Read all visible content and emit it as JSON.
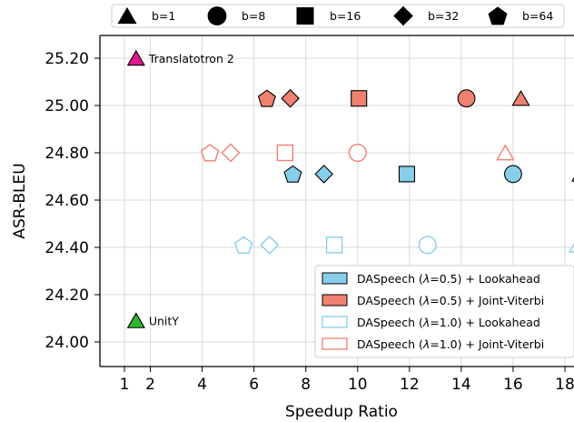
{
  "chart_data": {
    "type": "scatter",
    "xlabel": "Speedup Ratio",
    "ylabel": "ASR-BLEU",
    "xlim": [
      -0.3,
      18.7
    ],
    "ylim": [
      23.9,
      25.3
    ],
    "x_ticks": [
      1,
      2,
      4,
      6,
      8,
      10,
      12,
      14,
      16,
      18
    ],
    "x_tick_labels": [
      "1",
      "2",
      "4",
      "6",
      "8",
      "10",
      "12",
      "14",
      "16",
      "18"
    ],
    "y_ticks": [
      24.0,
      24.2,
      24.4,
      24.6,
      24.8,
      25.0,
      25.2
    ],
    "y_tick_labels": [
      "24.00",
      "24.20",
      "24.40",
      "24.60",
      "24.80",
      "25.00",
      "25.20"
    ],
    "grid": true,
    "marker_legend": {
      "placement": "top",
      "entries": [
        {
          "label": "b=1",
          "marker": "triangle"
        },
        {
          "label": "b=8",
          "marker": "circle"
        },
        {
          "label": "b=16",
          "marker": "square"
        },
        {
          "label": "b=32",
          "marker": "diamond"
        },
        {
          "label": "b=64",
          "marker": "pentagon"
        }
      ]
    },
    "series_legend": {
      "placement": "lower-right",
      "entries": [
        {
          "series": 0,
          "pre": "DASpeech (",
          "greek": "λ",
          "post": "=0.5) + Lookahead"
        },
        {
          "series": 1,
          "pre": "DASpeech (",
          "greek": "λ",
          "post": "=0.5) + Joint-Viterbi"
        },
        {
          "series": 2,
          "pre": "DASpeech (",
          "greek": "λ",
          "post": "=1.0) + Lookahead"
        },
        {
          "series": 3,
          "pre": "DASpeech (",
          "greek": "λ",
          "post": "=1.0) + Joint-Viterbi"
        }
      ]
    },
    "series": [
      {
        "fill": "#87ceeb",
        "stroke": "#000000",
        "filled": true,
        "points": [
          {
            "x": 18.6,
            "y": 24.71,
            "marker": "triangle"
          },
          {
            "x": 16.0,
            "y": 24.71,
            "marker": "circle"
          },
          {
            "x": 11.9,
            "y": 24.71,
            "marker": "square"
          },
          {
            "x": 8.7,
            "y": 24.71,
            "marker": "diamond"
          },
          {
            "x": 7.5,
            "y": 24.71,
            "marker": "pentagon"
          }
        ]
      },
      {
        "fill": "#f08070",
        "stroke": "#000000",
        "filled": true,
        "points": [
          {
            "x": 16.3,
            "y": 25.03,
            "marker": "triangle"
          },
          {
            "x": 14.2,
            "y": 25.03,
            "marker": "circle"
          },
          {
            "x": 10.05,
            "y": 25.03,
            "marker": "square"
          },
          {
            "x": 7.4,
            "y": 25.03,
            "marker": "diamond"
          },
          {
            "x": 6.5,
            "y": 25.03,
            "marker": "pentagon"
          }
        ]
      },
      {
        "fill": "none",
        "stroke": "#87ceeb",
        "filled": false,
        "points": [
          {
            "x": 18.5,
            "y": 24.41,
            "marker": "triangle"
          },
          {
            "x": 12.7,
            "y": 24.41,
            "marker": "circle"
          },
          {
            "x": 9.1,
            "y": 24.41,
            "marker": "square"
          },
          {
            "x": 6.6,
            "y": 24.41,
            "marker": "diamond"
          },
          {
            "x": 5.6,
            "y": 24.41,
            "marker": "pentagon"
          }
        ]
      },
      {
        "fill": "none",
        "stroke": "#f08070",
        "filled": false,
        "points": [
          {
            "x": 15.7,
            "y": 24.8,
            "marker": "triangle"
          },
          {
            "x": 10.0,
            "y": 24.8,
            "marker": "circle"
          },
          {
            "x": 7.2,
            "y": 24.8,
            "marker": "square"
          },
          {
            "x": 5.1,
            "y": 24.8,
            "marker": "diamond"
          },
          {
            "x": 4.3,
            "y": 24.8,
            "marker": "pentagon"
          }
        ]
      }
    ],
    "baselines": [
      {
        "label": "Translatotron 2",
        "x": 1.45,
        "y": 25.2,
        "marker": "triangle",
        "fill": "#e0188c",
        "stroke": "#000000"
      },
      {
        "label": "UnitY",
        "x": 1.45,
        "y": 24.09,
        "marker": "triangle",
        "fill": "#2fb82f",
        "stroke": "#000000"
      }
    ]
  }
}
